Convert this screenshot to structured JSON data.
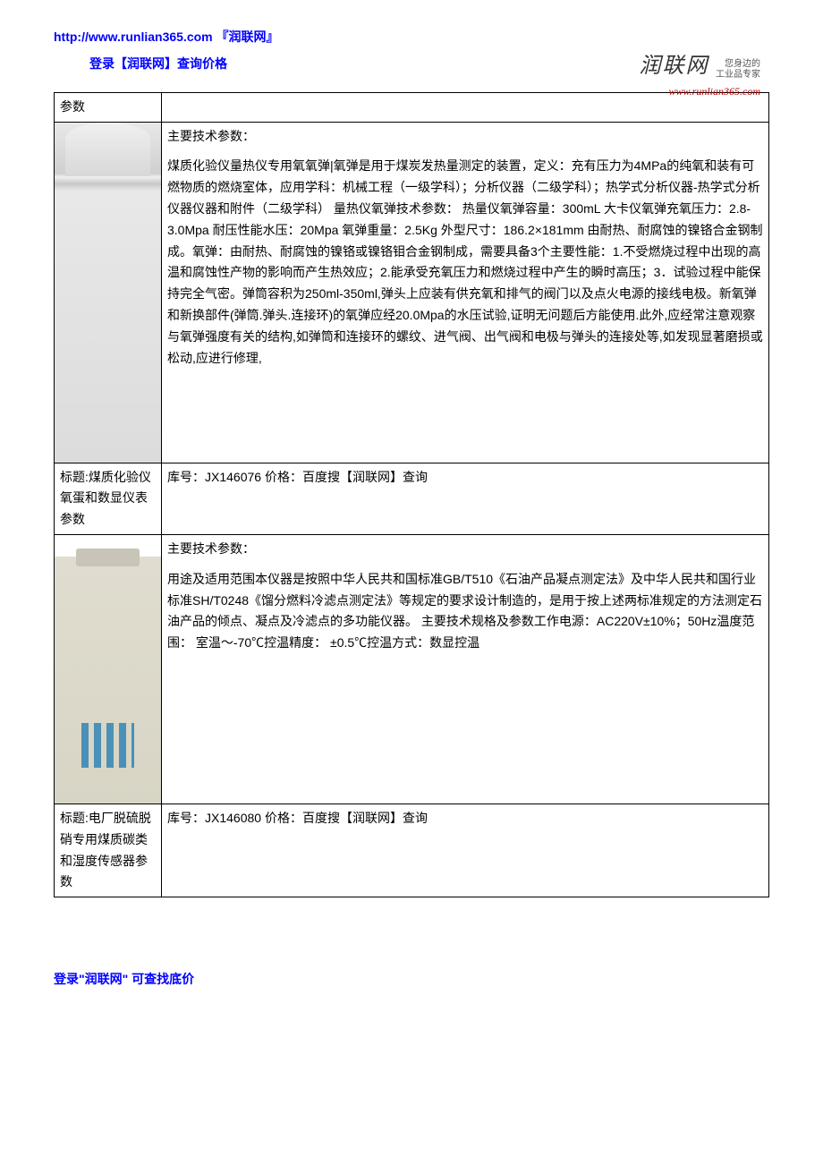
{
  "header": {
    "url_text": "http://www.runlian365.com 『润联网』",
    "login_text": "登录【润联网】查询价格"
  },
  "logo": {
    "brand": "润联网",
    "tagline1": "您身边的",
    "tagline2": "工业品专家",
    "url": "www.runlian365.com"
  },
  "rows": [
    {
      "left": "参数",
      "right": ""
    },
    {
      "left": "",
      "spec_header": "主要技术参数：",
      "spec_body": "煤质化验仪量热仪专用氧氧弹|氧弹是用于煤炭发热量测定的装置，定义：充有压力为4MPa的纯氧和装有可燃物质的燃烧室体，应用学科：机械工程（一级学科）；分析仪器（二级学科）；热学式分析仪器-热学式分析仪器仪器和附件（二级学科） 量热仪氧弹技术参数：   热量仪氧弹容量：300mL        大卡仪氧弹充氧压力：2.8-3.0Mpa      耐压性能水压：20Mpa        氧弹重量：2.5Kg        外型尺寸：186.2×181mm     由耐热、耐腐蚀的镍铬合金钢制成。氧弹：由耐热、耐腐蚀的镍铬或镍铬钼合金钢制成，需要具备3个主要性能：1.不受燃烧过程中出现的高温和腐蚀性产物的影响而产生热效应；2.能承受充氧压力和燃烧过程中产生的瞬时高压；3．试验过程中能保持完全气密。弹筒容积为250ml-350ml,弹头上应装有供充氧和排气的阀门以及点火电源的接线电极。新氧弹和新换部件(弹筒.弹头.连接环)的氧弹应经20.0Mpa的水压试验,证明无问题后方能使用.此外,应经常注意观察与氧弹强度有关的结构,如弹筒和连接环的螺纹、进气阀、出气阀和电极与弹头的连接处等,如发现显著磨损或松动,应进行修理,"
    },
    {
      "left": "标题:煤质化验仪氧蛋和数显仪表参数",
      "right": "库号：JX146076 价格：百度搜【润联网】查询"
    },
    {
      "left": "",
      "spec_header": "主要技术参数：",
      "spec_body": "用途及适用范围本仪器是按照中华人民共和国标准GB/T510《石油产品凝点测定法》及中华人民共和国行业标准SH/T0248《馏分燃料冷滤点测定法》等规定的要求设计制造的，是用于按上述两标准规定的方法测定石油产品的倾点、凝点及冷滤点的多功能仪器。 主要技术规格及参数工作电源：AC220V±10%；50Hz温度范围： 室温～-70℃控温精度： ±0.5℃控温方式：数显控温"
    },
    {
      "left": "标题:电厂脱硫脱硝专用煤质碳类和湿度传感器参数",
      "right": "库号：JX146080 价格：百度搜【润联网】查询"
    }
  ],
  "footer": {
    "text": "登录\"润联网\" 可查找底价"
  }
}
